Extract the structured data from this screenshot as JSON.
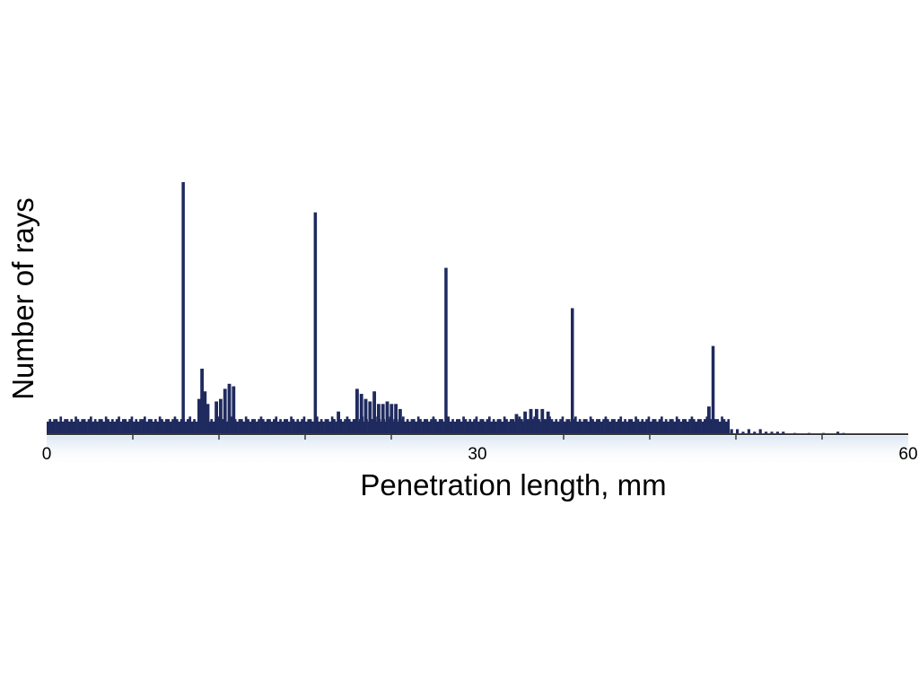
{
  "chart_data": {
    "type": "bar",
    "xlabel": "Penetration length, mm",
    "ylabel": "Number of rays",
    "xlim": [
      0,
      60
    ],
    "ylim": [
      0,
      100
    ],
    "x_ticks": [
      0,
      30,
      60
    ],
    "minor_ticks": [
      6,
      12,
      18,
      24,
      36,
      42,
      48,
      54
    ],
    "grid": false,
    "colors": {
      "bars": "#1f2a5e",
      "axis": "#3a3a3a"
    },
    "bins": {
      "x_start": 0,
      "bin_width": 0.15,
      "values": [
        5,
        6,
        5,
        6,
        6,
        5,
        7,
        5,
        6,
        6,
        5,
        6,
        5,
        7,
        6,
        5,
        6,
        6,
        5,
        6,
        7,
        5,
        6,
        5,
        6,
        6,
        5,
        7,
        6,
        5,
        6,
        5,
        6,
        7,
        5,
        6,
        6,
        5,
        6,
        7,
        5,
        6,
        5,
        6,
        6,
        7,
        5,
        6,
        6,
        5,
        6,
        5,
        7,
        6,
        5,
        6,
        6,
        5,
        6,
        7,
        6,
        5,
        6,
        6,
        5,
        6,
        7,
        5,
        6,
        5,
        6,
        6,
        5,
        7,
        6,
        5,
        6,
        5,
        6,
        7,
        5,
        6,
        6,
        5,
        6,
        7,
        5,
        6,
        5,
        6,
        6,
        5,
        7,
        6,
        5,
        6,
        6,
        5,
        6,
        7,
        6,
        5,
        6,
        6,
        5,
        6,
        7,
        5,
        6,
        5,
        6,
        6,
        5,
        7,
        6,
        5,
        6,
        5,
        6,
        7,
        5,
        6,
        6,
        5,
        6,
        7,
        5,
        6,
        5,
        6,
        6,
        5,
        7,
        6,
        5,
        6,
        6,
        5,
        6,
        7,
        6,
        5,
        6,
        6,
        5,
        6,
        7,
        5,
        6,
        5,
        6,
        6,
        5,
        7,
        6,
        5,
        6,
        5,
        6,
        7,
        5,
        6,
        6,
        5,
        6,
        7,
        5,
        6,
        5,
        6,
        6,
        5,
        7,
        6,
        5,
        6,
        6,
        5,
        6,
        7,
        6,
        5,
        6,
        6,
        5,
        6,
        7,
        5,
        6,
        5,
        6,
        6,
        5,
        7,
        6,
        5,
        6,
        5,
        6,
        7,
        5,
        6,
        6,
        5,
        6,
        7,
        5,
        6,
        5,
        6,
        6,
        5,
        7,
        6,
        5,
        6,
        6,
        5,
        6,
        7,
        6,
        5,
        6,
        6,
        5,
        6,
        7,
        5,
        6,
        5,
        6,
        6,
        5,
        7,
        6,
        5,
        6,
        5,
        6,
        7,
        5,
        6,
        6,
        5,
        6,
        7,
        5,
        6,
        5,
        6,
        6,
        5,
        7,
        6,
        5,
        6,
        6,
        5,
        6,
        7,
        6,
        5,
        6,
        6,
        5,
        6,
        7,
        5,
        6,
        5,
        6,
        6,
        5,
        7,
        6,
        5,
        6,
        5,
        6,
        7,
        5,
        6,
        6,
        5,
        6,
        7,
        5,
        6,
        5,
        6,
        6,
        5,
        7,
        6,
        5,
        6,
        6,
        5,
        6,
        7,
        6,
        5,
        6,
        6,
        5,
        6,
        7,
        5,
        6,
        5,
        6,
        6,
        5,
        7,
        6,
        5,
        6,
        5,
        6,
        7,
        5,
        6,
        6,
        5,
        6,
        7,
        5,
        6,
        5,
        6,
        6,
        5,
        7,
        6,
        5,
        6,
        6,
        5,
        6,
        7,
        6,
        5,
        6,
        6,
        5,
        6,
        7,
        5,
        6,
        5,
        6,
        6,
        5,
        7,
        6,
        5,
        6,
        5,
        6,
        7,
        5,
        6,
        6,
        5,
        6,
        7,
        5,
        6,
        5,
        6,
        6,
        5,
        7,
        6,
        5,
        6,
        6,
        5,
        6,
        7,
        6,
        5,
        6,
        6,
        5,
        6,
        7,
        5,
        6,
        5,
        6,
        6,
        5,
        7,
        6,
        5,
        6,
        5,
        6,
        7,
        5,
        6,
        6,
        5,
        6,
        7,
        5,
        6,
        5,
        6,
        6,
        5,
        7,
        6,
        5,
        6,
        6,
        5,
        6,
        7,
        6,
        5,
        6,
        6,
        5,
        6,
        7
      ]
    },
    "highlight_bins": [
      {
        "x": 9.4,
        "value": 100
      },
      {
        "x": 10.5,
        "value": 14
      },
      {
        "x": 10.7,
        "value": 26
      },
      {
        "x": 10.9,
        "value": 17
      },
      {
        "x": 11.1,
        "value": 12
      },
      {
        "x": 11.7,
        "value": 13
      },
      {
        "x": 12.0,
        "value": 14
      },
      {
        "x": 12.3,
        "value": 18
      },
      {
        "x": 12.6,
        "value": 20
      },
      {
        "x": 12.9,
        "value": 19
      },
      {
        "x": 18.6,
        "value": 88
      },
      {
        "x": 20.2,
        "value": 9
      },
      {
        "x": 21.5,
        "value": 18
      },
      {
        "x": 21.8,
        "value": 16
      },
      {
        "x": 22.1,
        "value": 14
      },
      {
        "x": 22.4,
        "value": 13
      },
      {
        "x": 22.7,
        "value": 17
      },
      {
        "x": 23.0,
        "value": 12
      },
      {
        "x": 23.3,
        "value": 12
      },
      {
        "x": 23.6,
        "value": 13
      },
      {
        "x": 23.9,
        "value": 12
      },
      {
        "x": 24.2,
        "value": 12
      },
      {
        "x": 24.5,
        "value": 10
      },
      {
        "x": 27.7,
        "value": 66
      },
      {
        "x": 32.6,
        "value": 8
      },
      {
        "x": 33.2,
        "value": 9
      },
      {
        "x": 33.6,
        "value": 10
      },
      {
        "x": 34.0,
        "value": 10
      },
      {
        "x": 34.4,
        "value": 10
      },
      {
        "x": 34.8,
        "value": 9
      },
      {
        "x": 36.5,
        "value": 50
      },
      {
        "x": 46.0,
        "value": 11
      },
      {
        "x": 46.3,
        "value": 35
      }
    ],
    "tail_bins": [
      {
        "x": 47.6,
        "value": 2
      },
      {
        "x": 48.0,
        "value": 2
      },
      {
        "x": 48.4,
        "value": 1
      },
      {
        "x": 48.8,
        "value": 2
      },
      {
        "x": 49.2,
        "value": 1
      },
      {
        "x": 49.6,
        "value": 2
      },
      {
        "x": 50.0,
        "value": 1
      },
      {
        "x": 50.4,
        "value": 1
      },
      {
        "x": 50.8,
        "value": 1
      },
      {
        "x": 51.2,
        "value": 1
      },
      {
        "x": 52.0,
        "value": 0.5
      },
      {
        "x": 53.0,
        "value": 0.5
      },
      {
        "x": 54.0,
        "value": 0.5
      },
      {
        "x": 55.0,
        "value": 1
      },
      {
        "x": 55.4,
        "value": 0.5
      }
    ],
    "base_end_x": 47.4
  }
}
